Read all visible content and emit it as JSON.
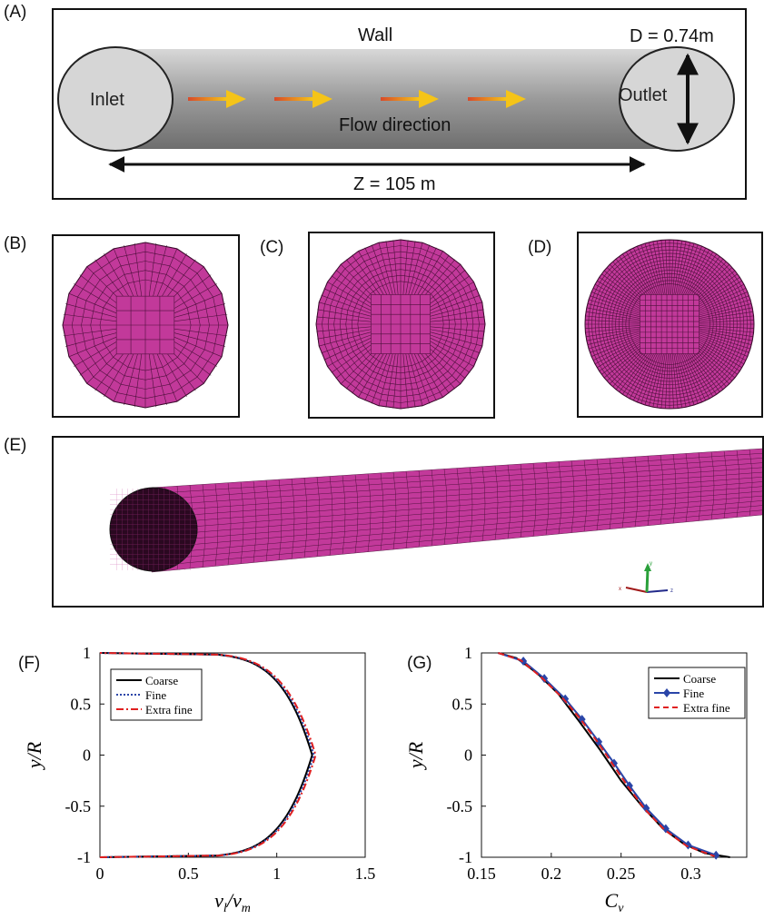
{
  "panel_labels": {
    "a": "(A)",
    "b": "(B)",
    "c": "(C)",
    "d": "(D)",
    "e": "(E)",
    "f": "(F)",
    "g": "(G)"
  },
  "pipe": {
    "wall": "Wall",
    "diameter": "D = 0.74m",
    "inlet": "Inlet",
    "outlet": "Outlet",
    "flow": "Flow direction",
    "length": "Z = 105 m"
  },
  "colors": {
    "mesh": "#c2399a",
    "mesh_line": "#3a0a2c",
    "coarse": "#000000",
    "fine": "#2a45a8",
    "extra_fine": "#e02020"
  },
  "axes_icon": {
    "x": "x",
    "y": "y",
    "z": "z"
  },
  "chart_data": [
    {
      "type": "line",
      "xlabel": "v_l / v_m",
      "ylabel": "y / R",
      "xlim": [
        0,
        1.5
      ],
      "ylim": [
        -1,
        1
      ],
      "xticks": [
        "0",
        "0.5",
        "1",
        "1.5"
      ],
      "yticks": [
        "1",
        "0.5",
        "0",
        "-0.5",
        "-1"
      ],
      "legend_position": "top-left",
      "series": [
        {
          "name": "Coarse",
          "style": "solid",
          "peak": 1.2
        },
        {
          "name": "Fine",
          "style": "dotted",
          "peak": 1.21
        },
        {
          "name": "Extra fine",
          "style": "dashdot",
          "peak": 1.22
        }
      ]
    },
    {
      "type": "line",
      "xlabel": "C_vs",
      "ylabel": "y / R",
      "xlim": [
        0.15,
        0.34
      ],
      "ylim": [
        -1,
        1
      ],
      "xticks": [
        "0.15",
        "0.2",
        "0.25",
        "0.3"
      ],
      "yticks": [
        "1",
        "0.5",
        "0",
        "-0.5",
        "-1"
      ],
      "legend_position": "top-right",
      "series": [
        {
          "name": "Coarse",
          "style": "solid",
          "points": [
            [
              0.162,
              1.0
            ],
            [
              0.175,
              0.95
            ],
            [
              0.19,
              0.8
            ],
            [
              0.205,
              0.6
            ],
            [
              0.22,
              0.33
            ],
            [
              0.235,
              0.05
            ],
            [
              0.25,
              -0.25
            ],
            [
              0.265,
              -0.5
            ],
            [
              0.28,
              -0.72
            ],
            [
              0.295,
              -0.87
            ],
            [
              0.31,
              -0.96
            ],
            [
              0.328,
              -1.0
            ]
          ]
        },
        {
          "name": "Fine",
          "style": "diamond",
          "points": [
            [
              0.162,
              1.0
            ],
            [
              0.18,
              0.92
            ],
            [
              0.195,
              0.75
            ],
            [
              0.21,
              0.55
            ],
            [
              0.222,
              0.35
            ],
            [
              0.234,
              0.13
            ],
            [
              0.245,
              -0.08
            ],
            [
              0.256,
              -0.3
            ],
            [
              0.268,
              -0.52
            ],
            [
              0.282,
              -0.72
            ],
            [
              0.298,
              -0.88
            ],
            [
              0.318,
              -0.98
            ]
          ]
        },
        {
          "name": "Extra fine",
          "style": "dashed",
          "points": [
            [
              0.162,
              1.0
            ],
            [
              0.178,
              0.93
            ],
            [
              0.193,
              0.76
            ],
            [
              0.208,
              0.56
            ],
            [
              0.221,
              0.35
            ],
            [
              0.233,
              0.13
            ],
            [
              0.244,
              -0.09
            ],
            [
              0.255,
              -0.31
            ],
            [
              0.267,
              -0.53
            ],
            [
              0.281,
              -0.73
            ],
            [
              0.297,
              -0.89
            ],
            [
              0.317,
              -0.99
            ]
          ]
        }
      ]
    }
  ]
}
